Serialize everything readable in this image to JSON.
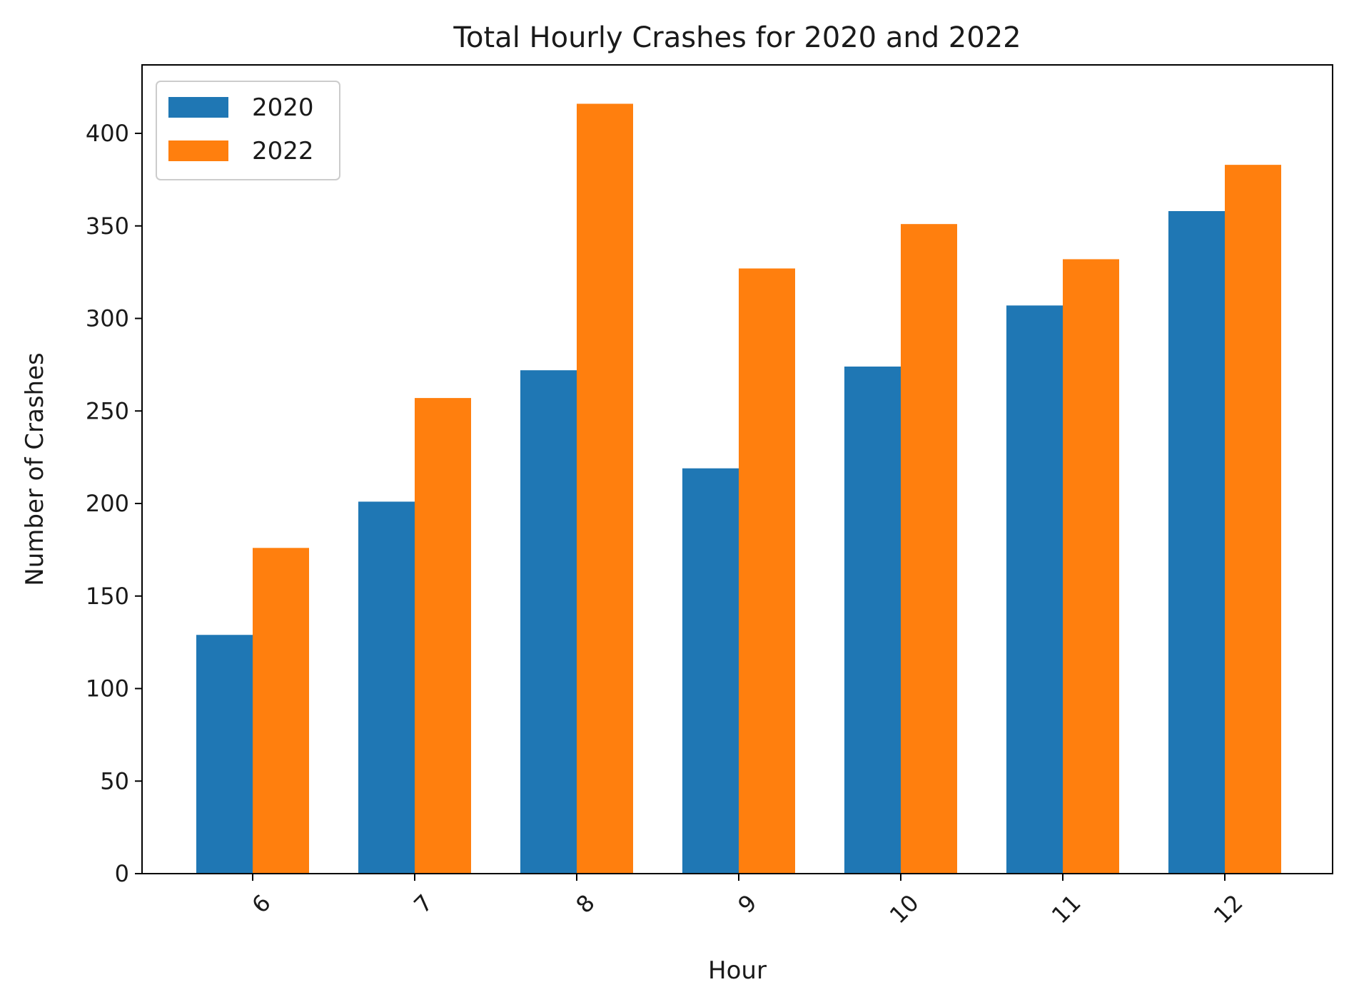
{
  "chart_data": {
    "type": "bar",
    "title": "Total Hourly Crashes for 2020 and 2022",
    "xlabel": "Hour",
    "ylabel": "Number of Crashes",
    "categories": [
      "6",
      "7",
      "8",
      "9",
      "10",
      "11",
      "12"
    ],
    "series": [
      {
        "name": "2020",
        "color": "#1f77b4",
        "values": [
          129,
          201,
          272,
          219,
          274,
          307,
          358
        ]
      },
      {
        "name": "2022",
        "color": "#ff7f0e",
        "values": [
          176,
          257,
          416,
          327,
          351,
          332,
          383
        ]
      }
    ],
    "ylim": [
      0,
      437
    ],
    "yticks": [
      0,
      50,
      100,
      150,
      200,
      250,
      300,
      350,
      400
    ],
    "xtick_rotation_deg": 45,
    "grid": false,
    "legend_position": "top-left"
  }
}
